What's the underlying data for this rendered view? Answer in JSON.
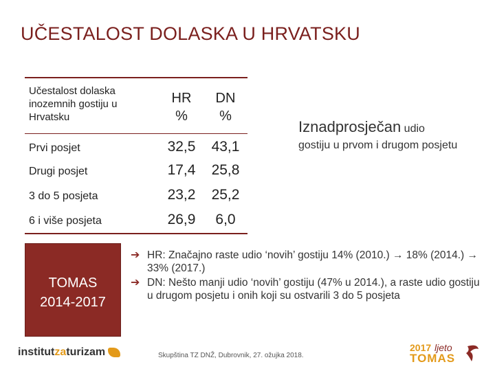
{
  "title": "UČESTALOST DOLASKA U HRVATSKU",
  "table": {
    "header_label": "Učestalost dolaska inozemnih gostiju u Hrvatsku",
    "col_hr": "HR %",
    "col_dn": "DN %",
    "rows": [
      {
        "label": "Prvi posjet",
        "hr": "32,5",
        "dn": "43,1"
      },
      {
        "label": "Drugi posjet",
        "hr": "17,4",
        "dn": "25,8"
      },
      {
        "label": "3 do 5 posjeta",
        "hr": "23,2",
        "dn": "25,2"
      },
      {
        "label": "6 i više posjeta",
        "hr": "26,9",
        "dn": "6,0"
      }
    ]
  },
  "side_note": {
    "big": "Iznadprosječan",
    "small": "udio",
    "rest": "gostiju u prvom i drugom posjetu"
  },
  "tomas_box": {
    "line1": "TOMAS",
    "line2": "2014-2017"
  },
  "bullets": [
    {
      "text": "HR: Značajno raste udio ‘novih’ gostiju 14% (2010.) → 18% (2014.) → 33% (2017.)"
    },
    {
      "text": "DN: Nešto manji udio ‘novih’ gostiju (47% u 2014.), a raste udio gostiju u drugom posjetu i onih koji su ostvarili 3 do 5 posjeta"
    }
  ],
  "footer": {
    "logo_part1": "institut",
    "logo_part2": "za",
    "logo_part3": "turizam",
    "text": "Skupština TZ DNŽ, Dubrovnik, 27. ožujka 2018.",
    "brand_year": "2017",
    "brand_ljeto": "ljeto",
    "brand_name": "TOMAS"
  },
  "colors": {
    "accent": "#7a1f1d",
    "box": "#8b2a25",
    "orange": "#e39a1a"
  }
}
